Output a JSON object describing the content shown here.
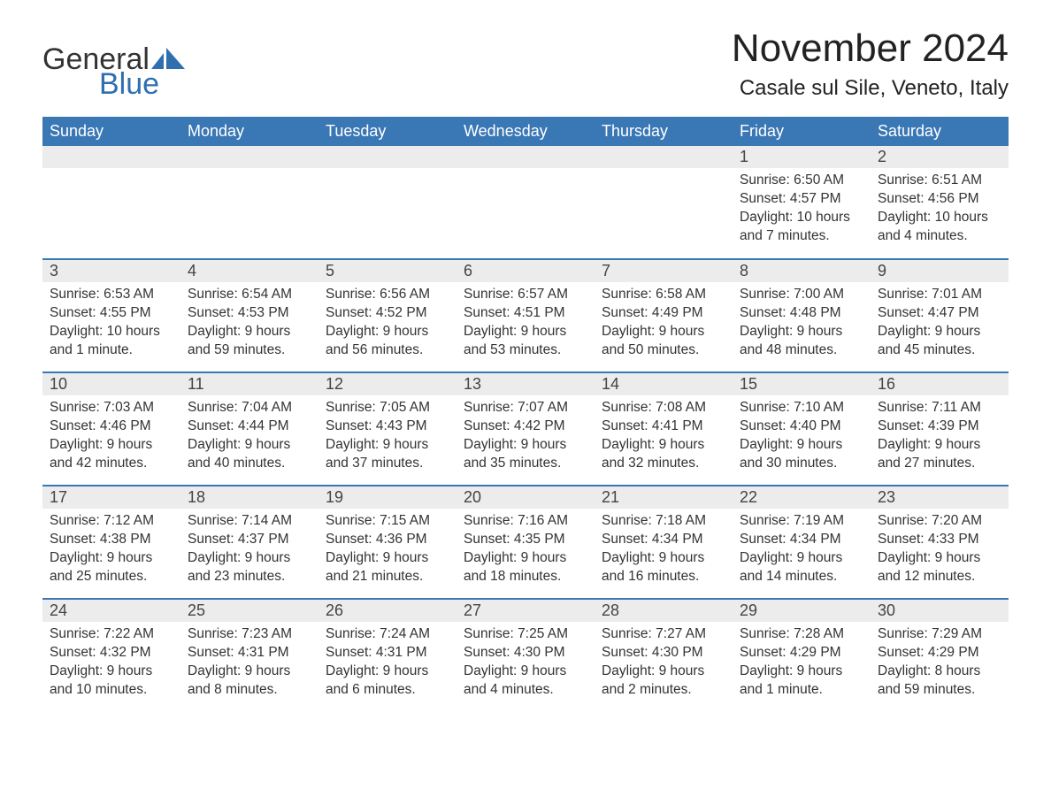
{
  "logo": {
    "text1": "General",
    "text2": "Blue",
    "sail_color": "#2f6fb0"
  },
  "title": "November 2024",
  "location": "Casale sul Sile, Veneto, Italy",
  "colors": {
    "header_bg": "#3a77b5",
    "header_fg": "#ffffff",
    "daynum_bg": "#ececec",
    "rule": "#3a77b5",
    "text": "#333333",
    "background": "#ffffff"
  },
  "day_headers": [
    "Sunday",
    "Monday",
    "Tuesday",
    "Wednesday",
    "Thursday",
    "Friday",
    "Saturday"
  ],
  "weeks": [
    [
      null,
      null,
      null,
      null,
      null,
      {
        "n": "1",
        "sunrise": "6:50 AM",
        "sunset": "4:57 PM",
        "daylight": "10 hours and 7 minutes."
      },
      {
        "n": "2",
        "sunrise": "6:51 AM",
        "sunset": "4:56 PM",
        "daylight": "10 hours and 4 minutes."
      }
    ],
    [
      {
        "n": "3",
        "sunrise": "6:53 AM",
        "sunset": "4:55 PM",
        "daylight": "10 hours and 1 minute."
      },
      {
        "n": "4",
        "sunrise": "6:54 AM",
        "sunset": "4:53 PM",
        "daylight": "9 hours and 59 minutes."
      },
      {
        "n": "5",
        "sunrise": "6:56 AM",
        "sunset": "4:52 PM",
        "daylight": "9 hours and 56 minutes."
      },
      {
        "n": "6",
        "sunrise": "6:57 AM",
        "sunset": "4:51 PM",
        "daylight": "9 hours and 53 minutes."
      },
      {
        "n": "7",
        "sunrise": "6:58 AM",
        "sunset": "4:49 PM",
        "daylight": "9 hours and 50 minutes."
      },
      {
        "n": "8",
        "sunrise": "7:00 AM",
        "sunset": "4:48 PM",
        "daylight": "9 hours and 48 minutes."
      },
      {
        "n": "9",
        "sunrise": "7:01 AM",
        "sunset": "4:47 PM",
        "daylight": "9 hours and 45 minutes."
      }
    ],
    [
      {
        "n": "10",
        "sunrise": "7:03 AM",
        "sunset": "4:46 PM",
        "daylight": "9 hours and 42 minutes."
      },
      {
        "n": "11",
        "sunrise": "7:04 AM",
        "sunset": "4:44 PM",
        "daylight": "9 hours and 40 minutes."
      },
      {
        "n": "12",
        "sunrise": "7:05 AM",
        "sunset": "4:43 PM",
        "daylight": "9 hours and 37 minutes."
      },
      {
        "n": "13",
        "sunrise": "7:07 AM",
        "sunset": "4:42 PM",
        "daylight": "9 hours and 35 minutes."
      },
      {
        "n": "14",
        "sunrise": "7:08 AM",
        "sunset": "4:41 PM",
        "daylight": "9 hours and 32 minutes."
      },
      {
        "n": "15",
        "sunrise": "7:10 AM",
        "sunset": "4:40 PM",
        "daylight": "9 hours and 30 minutes."
      },
      {
        "n": "16",
        "sunrise": "7:11 AM",
        "sunset": "4:39 PM",
        "daylight": "9 hours and 27 minutes."
      }
    ],
    [
      {
        "n": "17",
        "sunrise": "7:12 AM",
        "sunset": "4:38 PM",
        "daylight": "9 hours and 25 minutes."
      },
      {
        "n": "18",
        "sunrise": "7:14 AM",
        "sunset": "4:37 PM",
        "daylight": "9 hours and 23 minutes."
      },
      {
        "n": "19",
        "sunrise": "7:15 AM",
        "sunset": "4:36 PM",
        "daylight": "9 hours and 21 minutes."
      },
      {
        "n": "20",
        "sunrise": "7:16 AM",
        "sunset": "4:35 PM",
        "daylight": "9 hours and 18 minutes."
      },
      {
        "n": "21",
        "sunrise": "7:18 AM",
        "sunset": "4:34 PM",
        "daylight": "9 hours and 16 minutes."
      },
      {
        "n": "22",
        "sunrise": "7:19 AM",
        "sunset": "4:34 PM",
        "daylight": "9 hours and 14 minutes."
      },
      {
        "n": "23",
        "sunrise": "7:20 AM",
        "sunset": "4:33 PM",
        "daylight": "9 hours and 12 minutes."
      }
    ],
    [
      {
        "n": "24",
        "sunrise": "7:22 AM",
        "sunset": "4:32 PM",
        "daylight": "9 hours and 10 minutes."
      },
      {
        "n": "25",
        "sunrise": "7:23 AM",
        "sunset": "4:31 PM",
        "daylight": "9 hours and 8 minutes."
      },
      {
        "n": "26",
        "sunrise": "7:24 AM",
        "sunset": "4:31 PM",
        "daylight": "9 hours and 6 minutes."
      },
      {
        "n": "27",
        "sunrise": "7:25 AM",
        "sunset": "4:30 PM",
        "daylight": "9 hours and 4 minutes."
      },
      {
        "n": "28",
        "sunrise": "7:27 AM",
        "sunset": "4:30 PM",
        "daylight": "9 hours and 2 minutes."
      },
      {
        "n": "29",
        "sunrise": "7:28 AM",
        "sunset": "4:29 PM",
        "daylight": "9 hours and 1 minute."
      },
      {
        "n": "30",
        "sunrise": "7:29 AM",
        "sunset": "4:29 PM",
        "daylight": "8 hours and 59 minutes."
      }
    ]
  ],
  "labels": {
    "sunrise": "Sunrise: ",
    "sunset": "Sunset: ",
    "daylight": "Daylight: "
  }
}
